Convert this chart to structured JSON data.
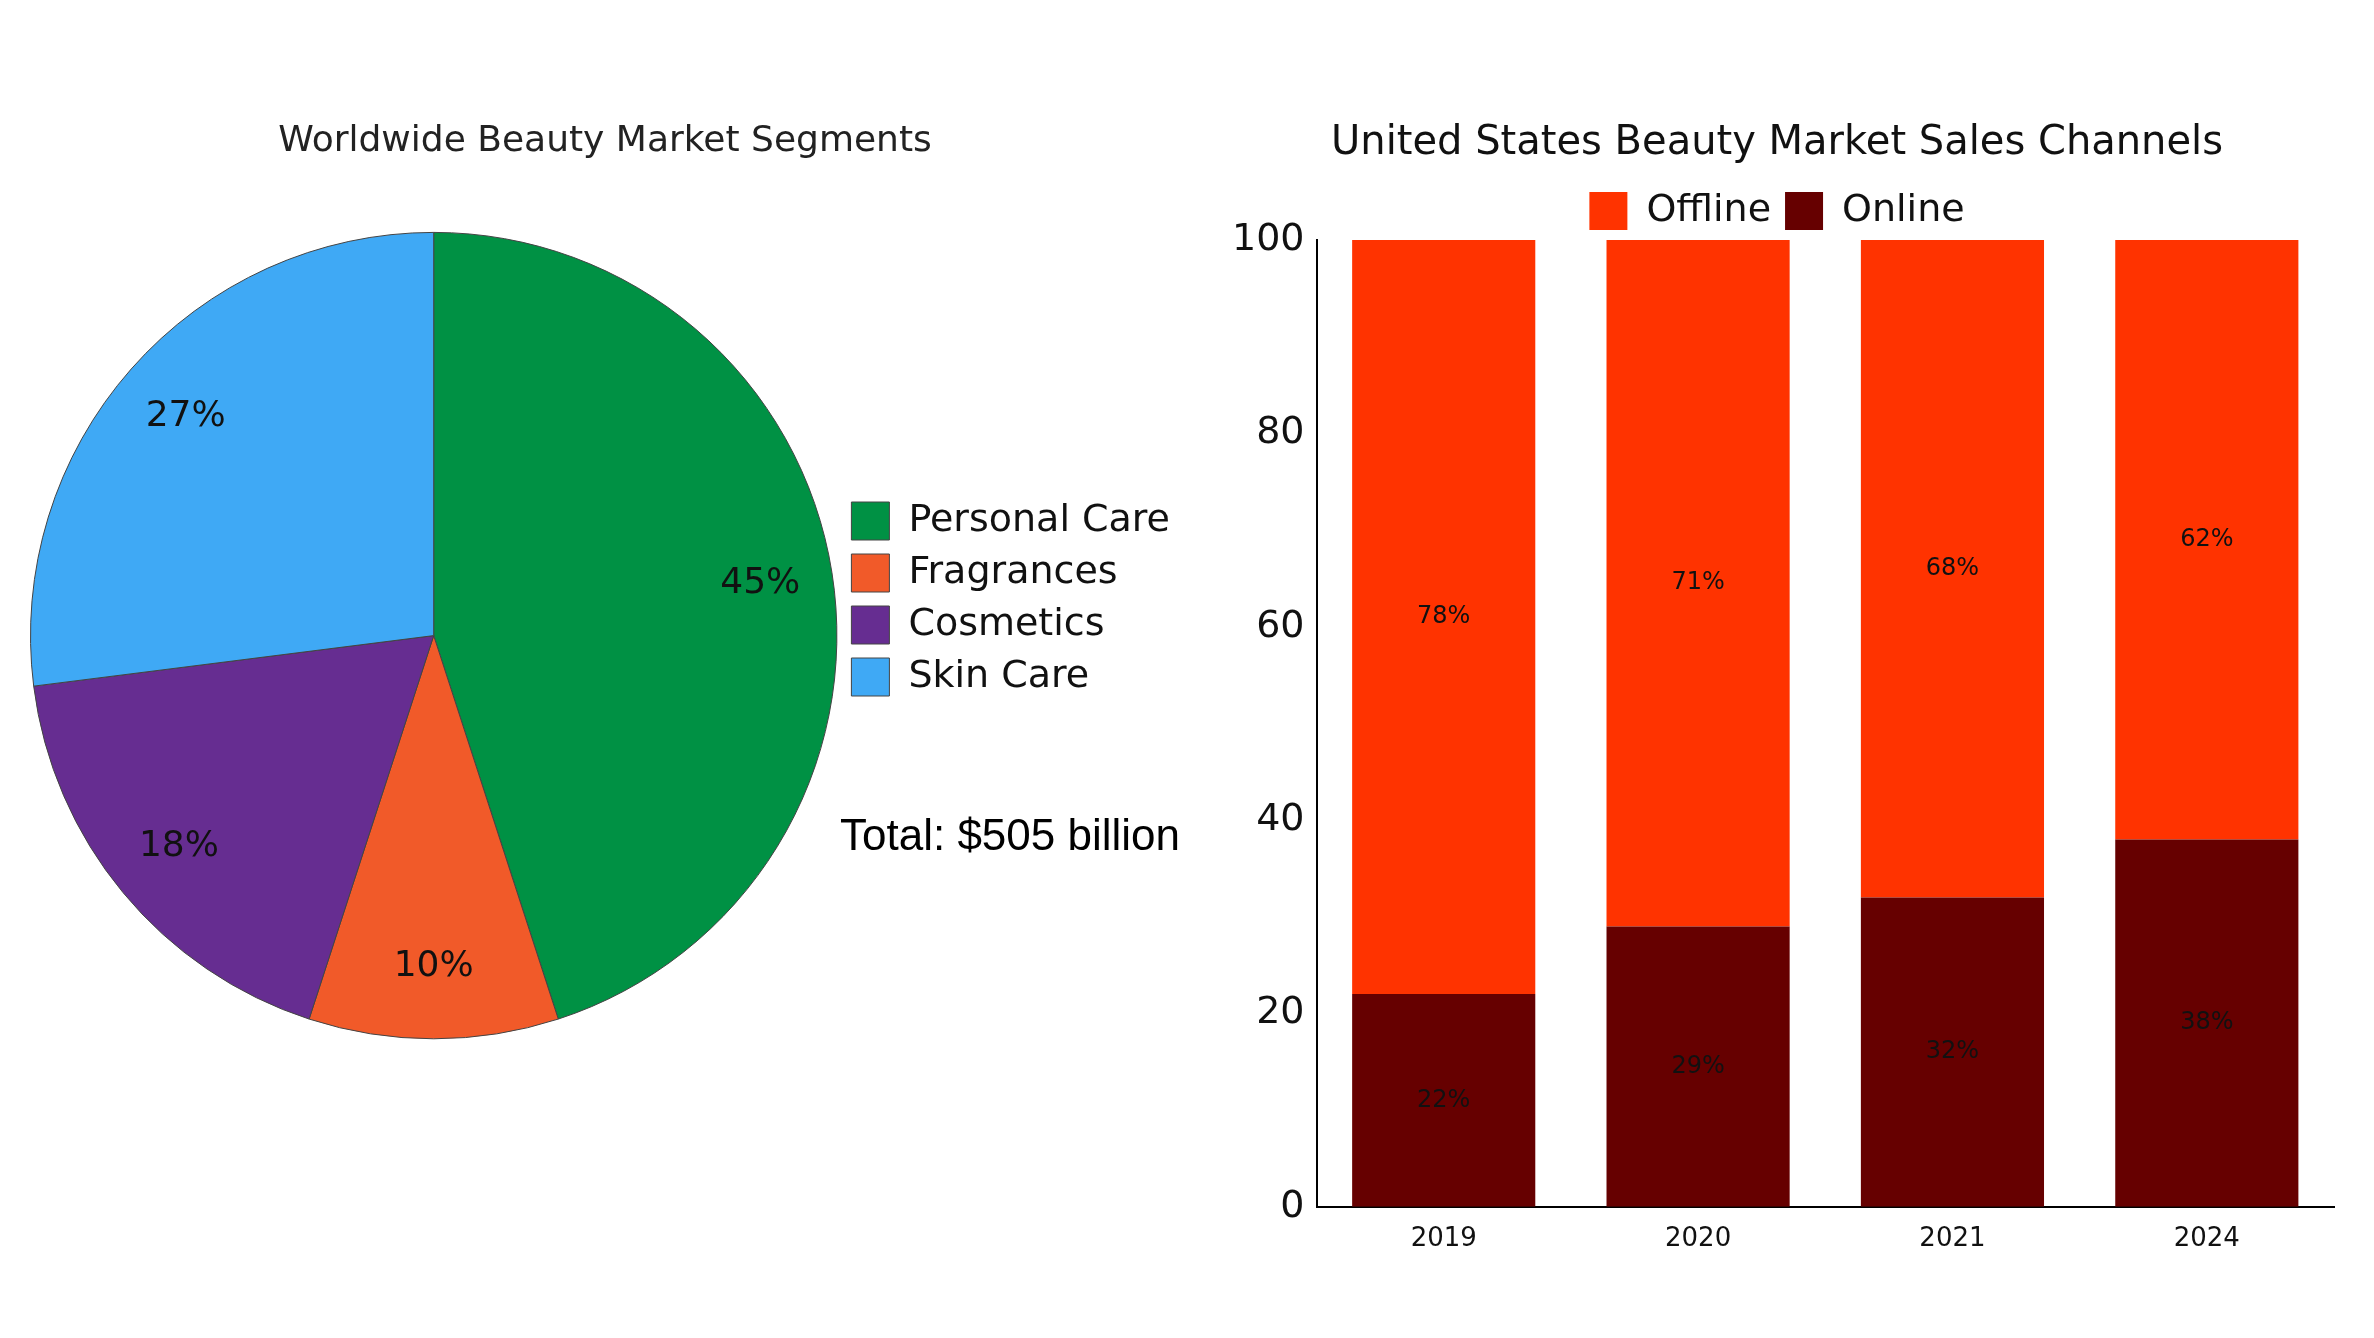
{
  "chart_data": [
    {
      "type": "pie",
      "title": "Worldwide Beauty Market Segments",
      "categories": [
        "Personal Care",
        "Fragrances",
        "Cosmetics",
        "Skin Care"
      ],
      "values": [
        45,
        10,
        18,
        27
      ],
      "colors": [
        "#009144",
        "#f15a29",
        "#662d91",
        "#3fa9f5"
      ],
      "value_labels": [
        "45%",
        "10%",
        "18%",
        "27%"
      ],
      "legend": "right",
      "annotations": [
        "Total: $505 billion"
      ]
    },
    {
      "type": "bar",
      "title": "United States Beauty Market Sales Channels",
      "categories": [
        "2019",
        "2020",
        "2021",
        "2024"
      ],
      "stacked": true,
      "series": [
        {
          "name": "Online",
          "color": "#660000",
          "values": [
            22,
            29,
            32,
            38
          ],
          "value_labels": [
            "22%",
            "29%",
            "32%",
            "38%"
          ]
        },
        {
          "name": "Offline",
          "color": "#ff3300",
          "values": [
            78,
            71,
            68,
            62
          ],
          "value_labels": [
            "78%",
            "71%",
            "68%",
            "62%"
          ]
        }
      ],
      "ylim": [
        0,
        100
      ],
      "yticks": [
        0,
        20,
        40,
        60,
        80,
        100
      ],
      "grid": false,
      "legend": "top"
    }
  ]
}
